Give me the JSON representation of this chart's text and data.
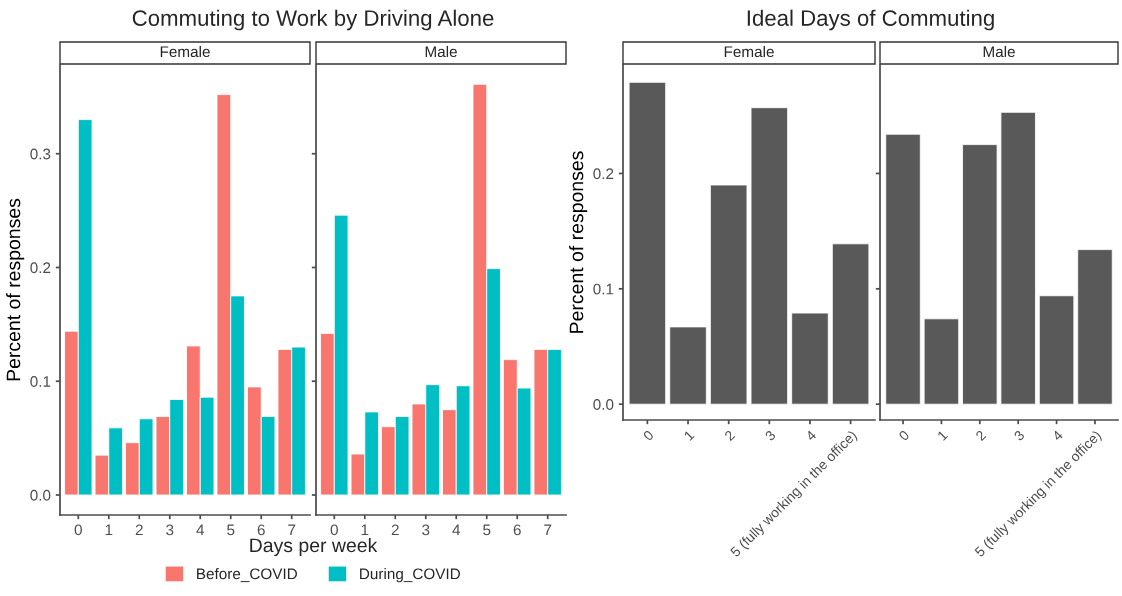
{
  "chart_data": [
    {
      "type": "bar",
      "title": "Commuting to Work by Driving Alone",
      "subtitle": "Female",
      "xlabel": "Days per week",
      "ylabel": "Percent of responses",
      "categories": [
        "0",
        "1",
        "2",
        "3",
        "4",
        "5",
        "6",
        "7"
      ],
      "series": [
        {
          "name": "Before_COVID",
          "color": "#f8766d",
          "values": [
            0.144,
            0.035,
            0.046,
            0.069,
            0.131,
            0.352,
            0.095,
            0.128
          ]
        },
        {
          "name": "During_COVID",
          "color": "#00bfc4",
          "values": [
            0.33,
            0.059,
            0.067,
            0.084,
            0.086,
            0.175,
            0.069,
            0.13
          ]
        }
      ],
      "ylim": [
        -0.0176,
        0.378
      ],
      "yticks": [
        {
          "value": 0,
          "label": "0.0"
        },
        0.1,
        0.2,
        0.3
      ],
      "grid": false,
      "legend": "bottom"
    },
    {
      "type": "bar",
      "subtitle": "Male",
      "categories": [
        "0",
        "1",
        "2",
        "3",
        "4",
        "5",
        "6",
        "7"
      ],
      "series": [
        {
          "color": "#f8766d",
          "values": [
            0.142,
            0.036,
            0.06,
            0.08,
            0.075,
            0.361,
            0.119,
            0.128
          ]
        },
        {
          "color": "#00bfc4",
          "values": [
            0.246,
            0.073,
            0.069,
            0.097,
            0.096,
            0.199,
            0.094,
            0.128
          ]
        }
      ],
      "ylim": [
        -0.0176,
        0.378
      ],
      "yticks": [
        0,
        0.1,
        0.2,
        0.3
      ],
      "tick_labels": "x",
      "grid": false
    },
    {
      "type": "bar",
      "title": "Ideal Days of Commuting",
      "subtitle": "Female",
      "ylabel": "Percent of responses",
      "categories": [
        "0",
        "1",
        "2",
        "3",
        "4",
        "5 (fully working in the office)"
      ],
      "values": [
        0.279,
        0.067,
        0.19,
        0.257,
        0.079,
        0.139
      ],
      "color": "#595959",
      "ylim": [
        -0.0137,
        0.294
      ],
      "yticks": [
        {
          "value": 0,
          "label": "0.0"
        },
        0.1,
        0.2
      ],
      "grid": false
    },
    {
      "type": "bar",
      "subtitle": "Male",
      "categories": [
        "0",
        "1",
        "2",
        "3",
        "4",
        "5 (fully working in the office)"
      ],
      "values": [
        0.234,
        0.074,
        0.225,
        0.253,
        0.094,
        0.134
      ],
      "color": "#595959",
      "ylim": [
        -0.0137,
        0.294
      ],
      "yticks": [
        0,
        0.1,
        0.2
      ],
      "tick_labels": "x",
      "grid": false
    }
  ]
}
